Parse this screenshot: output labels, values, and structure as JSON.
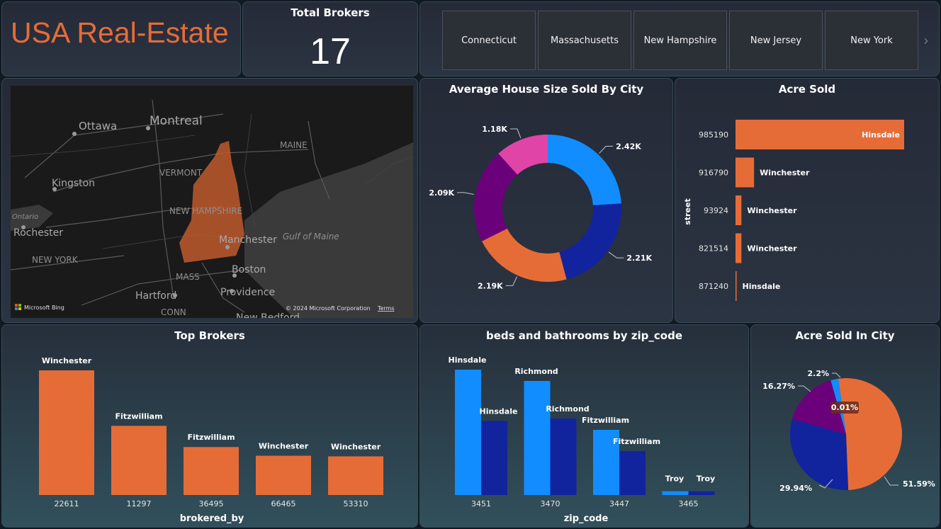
{
  "header": {
    "title": "USA Real-Estate",
    "total_brokers_label": "Total Brokers",
    "total_brokers_value": "17"
  },
  "slicer": {
    "states": [
      "Connecticut",
      "Massachusetts",
      "New Hampshire",
      "New Jersey",
      "New York"
    ],
    "scroll_icon": "chevron-right-icon"
  },
  "map": {
    "labels": {
      "ottawa": "Ottawa",
      "montreal": "Montreal",
      "maine": "MAINE",
      "vermont": "VERMONT",
      "kingston": "Kingston",
      "ontario": "Ontario",
      "new_hampshire": "NEW HAMPSHIRE",
      "rochester": "Rochester",
      "manchester": "Manchester",
      "gulf_of_maine": "Gulf of Maine",
      "new_york": "NEW YORK",
      "boston": "Boston",
      "mass": "MASS",
      "hartford": "Hartford",
      "providence": "Providence",
      "conn": "CONN",
      "new_bedford": "New Bedford"
    },
    "attribution": "Microsoft Bing",
    "copyright": "© 2024 Microsoft Corporation",
    "terms": "Terms",
    "highlight_color": "#c05a2e"
  },
  "colors": {
    "orange": "#e66c37",
    "blue": "#118dff",
    "navy": "#12239e",
    "purple": "#6b007b",
    "pink": "#e044a7"
  },
  "charts": {
    "avg_house_size": {
      "title": "Average House Size Sold By City"
    },
    "acre_sold": {
      "title": "Acre Sold",
      "ylabel": "street"
    },
    "top_brokers": {
      "title": "Top Brokers",
      "xlabel": "brokered_by"
    },
    "beds_baths": {
      "title": "beds and bathrooms by zip_code",
      "xlabel": "zip_code"
    },
    "acre_city": {
      "title": "Acre Sold In City"
    }
  },
  "chart_data": [
    {
      "id": "avg_house_size",
      "type": "pie",
      "title": "Average House Size Sold By City",
      "donut": true,
      "slices": [
        {
          "value": 2420,
          "label": "2.42K",
          "color": "#118dff"
        },
        {
          "value": 2210,
          "label": "2.21K",
          "color": "#12239e"
        },
        {
          "value": 2190,
          "label": "2.19K",
          "color": "#e66c37"
        },
        {
          "value": 2090,
          "label": "2.09K",
          "color": "#6b007b"
        },
        {
          "value": 1180,
          "label": "1.18K",
          "color": "#e044a7"
        }
      ]
    },
    {
      "id": "acre_sold",
      "type": "bar",
      "orientation": "horizontal",
      "title": "Acre Sold",
      "ylabel": "street",
      "categories": [
        "985190",
        "916790",
        "93924",
        "821514",
        "871240"
      ],
      "values": [
        100,
        11,
        3.5,
        3.5,
        0.5
      ],
      "data_labels": [
        "Hinsdale",
        "Winchester",
        "Winchester",
        "Winchester",
        "Hinsdale"
      ],
      "xlim": [
        0,
        100
      ]
    },
    {
      "id": "top_brokers",
      "type": "bar",
      "title": "Top Brokers",
      "xlabel": "brokered_by",
      "categories": [
        "22611",
        "11297",
        "36495",
        "66465",
        "53310"
      ],
      "values": [
        100,
        55.5,
        38.5,
        31.5,
        31
      ],
      "data_labels": [
        "Winchester",
        "Fitzwilliam",
        "Fitzwilliam",
        "Winchester",
        "Winchester"
      ],
      "ylim": [
        0,
        100
      ]
    },
    {
      "id": "beds_baths",
      "type": "bar",
      "title": "beds and bathrooms by zip_code",
      "xlabel": "zip_code",
      "categories": [
        "3451",
        "3470",
        "3447",
        "3465"
      ],
      "series": [
        {
          "values": [
            100,
            91,
            52,
            3
          ],
          "labels": [
            "Hinsdale",
            "Richmond",
            "Fitzwilliam",
            "Troy"
          ],
          "color": "#118dff"
        },
        {
          "values": [
            59,
            61,
            35,
            3
          ],
          "labels": [
            "Hinsdale",
            "Richmond",
            "Fitzwilliam",
            "Troy"
          ],
          "color": "#12239e"
        }
      ],
      "ylim": [
        0,
        100
      ]
    },
    {
      "id": "acre_city",
      "type": "pie",
      "title": "Acre Sold In City",
      "slices": [
        {
          "value": 51.59,
          "label": "51.59%",
          "color": "#e66c37"
        },
        {
          "value": 29.94,
          "label": "29.94%",
          "color": "#12239e"
        },
        {
          "value": 16.27,
          "label": "16.27%",
          "color": "#6b007b"
        },
        {
          "value": 0.01,
          "label": "0.01%",
          "color": "#e044a7"
        },
        {
          "value": 2.2,
          "label": "2.2%",
          "color": "#118dff"
        }
      ]
    }
  ]
}
